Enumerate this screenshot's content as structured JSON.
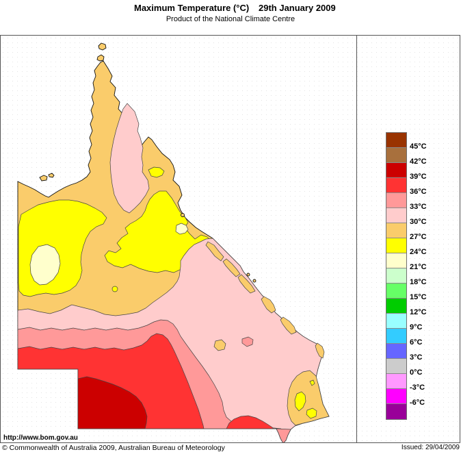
{
  "header": {
    "title": "Maximum Temperature (°C)",
    "date": "29th January 2009",
    "subtitle": "Product of the National Climate Centre"
  },
  "legend": {
    "labels": [
      "45°C",
      "42°C",
      "39°C",
      "36°C",
      "33°C",
      "30°C",
      "27°C",
      "24°C",
      "21°C",
      "18°C",
      "15°C",
      "12°C",
      "9°C",
      "6°C",
      "3°C",
      "0°C",
      "-3°C",
      "-6°C"
    ],
    "colors": [
      "#993300",
      "#A8703D",
      "#CC0000",
      "#FF3333",
      "#FF9999",
      "#FFCCCC",
      "#FACC6B",
      "#FFFF00",
      "#FFFFCC",
      "#CCFFCC",
      "#66FF66",
      "#00CC00",
      "#99FFFF",
      "#33CCFF",
      "#6666FF",
      "#CCCCCC",
      "#FF99FF",
      "#FF00FF",
      "#990099"
    ]
  },
  "map": {
    "zone_colors": {
      "t39_42": "#CC0000",
      "t36_39": "#FF3333",
      "t33_36": "#FF9999",
      "t30_33": "#FFCCCC",
      "t27_30": "#FACC6B",
      "t24_27": "#FFFF00",
      "t21_24": "#FFFFCC"
    }
  },
  "footer": {
    "url": "http://www.bom.gov.au",
    "copyright": "© Commonwealth of Australia 2009, Australian Bureau of Meteorology",
    "issued": "Issued: 29/04/2009"
  }
}
